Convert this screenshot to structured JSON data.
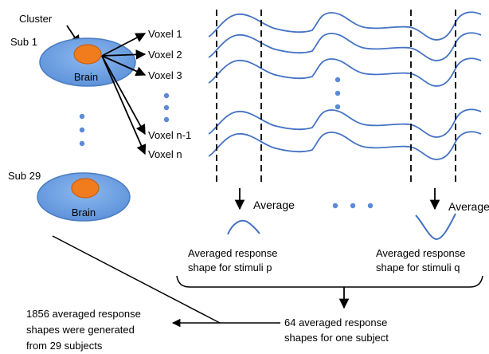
{
  "subjects": {
    "first": {
      "label": "Sub 1",
      "cluster_label": "Cluster",
      "brain_label": "Brain"
    },
    "last": {
      "label": "Sub 29",
      "brain_label": "Brain"
    }
  },
  "voxels": [
    "Voxel 1",
    "Voxel 2",
    "Voxel 3",
    "Voxel n-1",
    "Voxel n"
  ],
  "averages": {
    "left": {
      "label": "Average",
      "caption_line1": "Averaged response",
      "caption_line2": "shape for stimuli p"
    },
    "right": {
      "label": "Average",
      "caption_line1": "Averaged response",
      "caption_line2": "shape for stimuli q"
    }
  },
  "summary": {
    "subject_line1": "64 averaged response",
    "subject_line2": "shapes for one subject",
    "total_line1": "1856 averaged response",
    "total_line2": "shapes were generated",
    "total_line3": "from 29 subjects"
  },
  "colors": {
    "brain_fill": "#6a9fe0",
    "brain_stroke": "#4a7cc0",
    "cluster_fill": "#f07c1e",
    "cluster_stroke": "#c86010",
    "wave": "#4472c4",
    "dot": "#5b8ad6",
    "line": "#000000"
  }
}
